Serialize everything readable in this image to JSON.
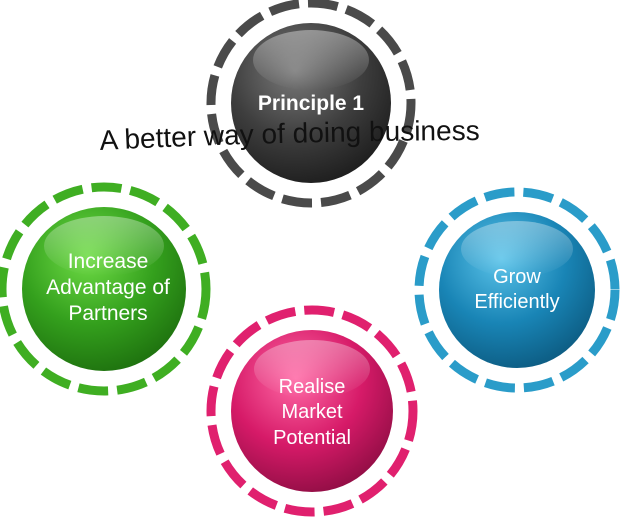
{
  "diagram": {
    "tagline": "A better way of doing business",
    "nodes": [
      {
        "id": "principle",
        "lines": [
          "Principle 1"
        ],
        "color": "#3b3b3b",
        "color_light": "#6a6a6a",
        "ring": "#4a4a4a"
      },
      {
        "id": "partners",
        "lines": [
          "Increase",
          "Advantage of",
          "Partners"
        ],
        "color": "#36a41f",
        "color_light": "#5fd03c",
        "ring": "#3fae22"
      },
      {
        "id": "grow",
        "lines": [
          "Grow",
          "Efficiently"
        ],
        "color": "#1a87b8",
        "color_light": "#4ab6e0",
        "ring": "#2a9cc9"
      },
      {
        "id": "market",
        "lines": [
          "Realise",
          "Market",
          "Potential"
        ],
        "color": "#d81b6a",
        "color_light": "#f45596",
        "ring": "#e0206e"
      }
    ]
  }
}
